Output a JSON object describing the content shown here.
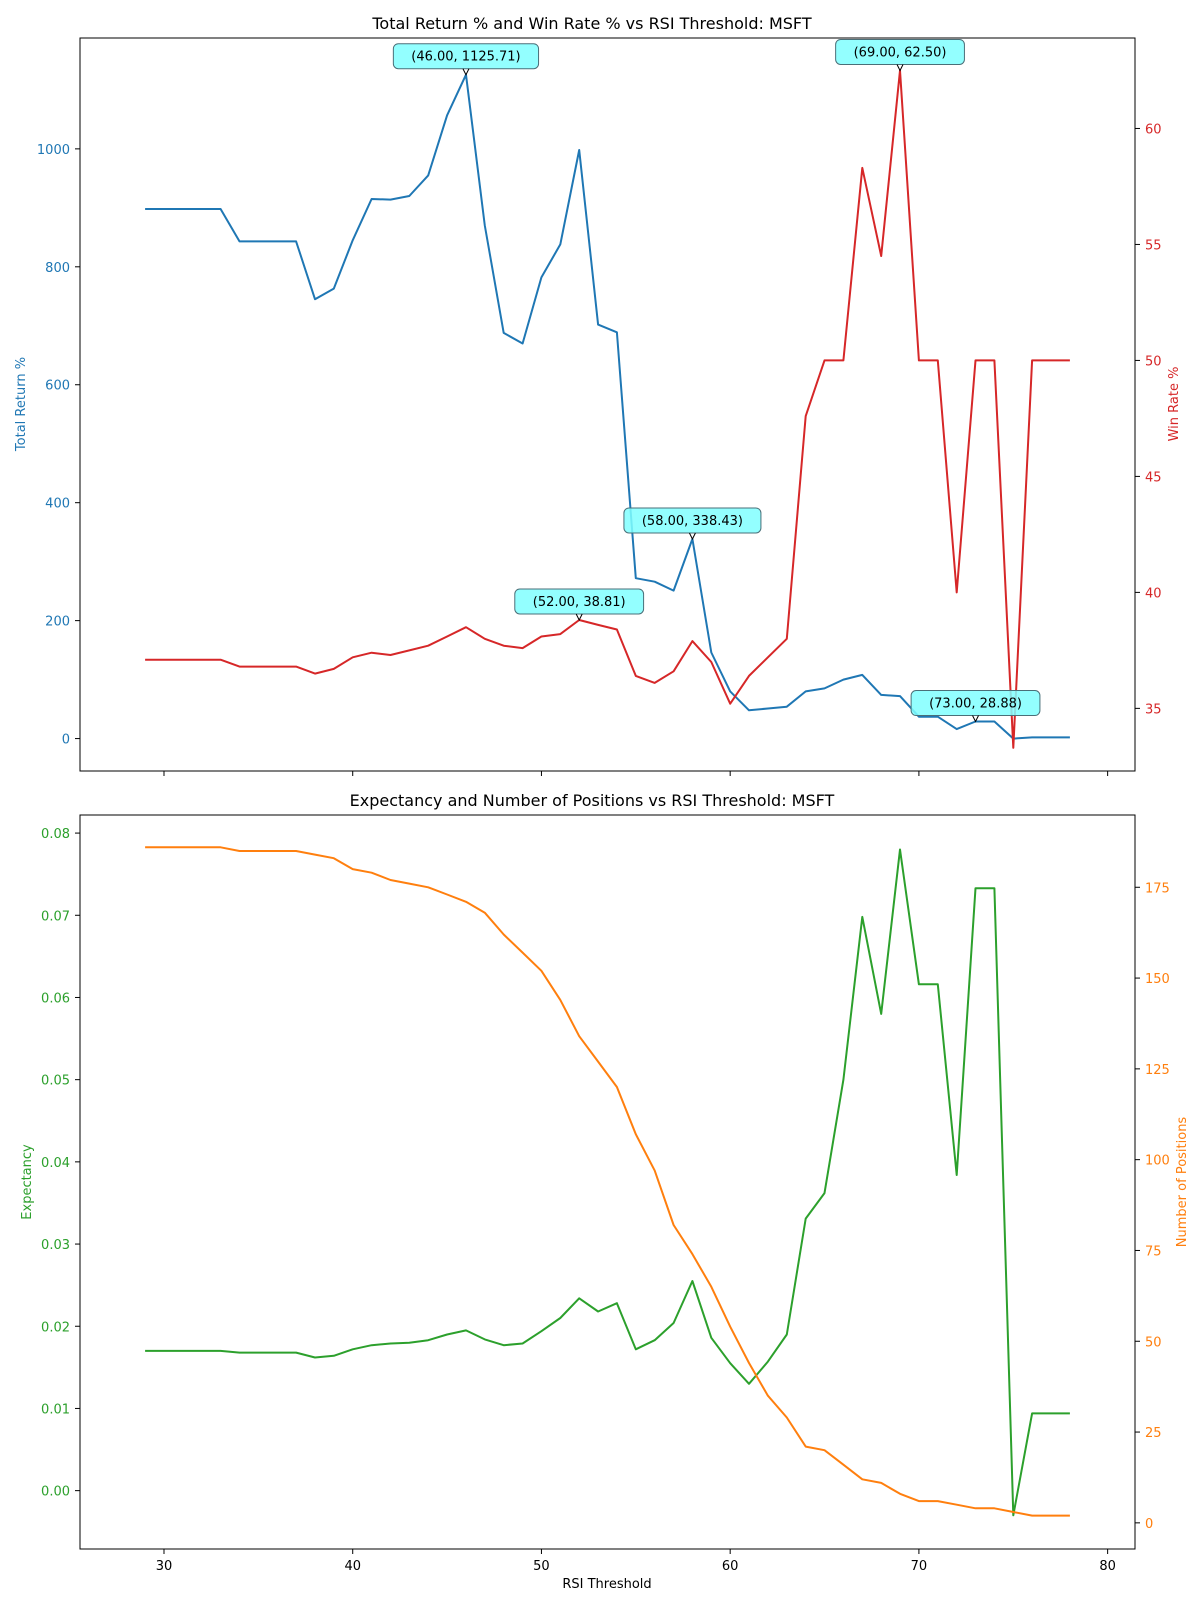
{
  "chart_data": [
    {
      "type": "line",
      "title": "Total Return % and Win Rate % vs RSI Threshold: MSFT",
      "x": [
        29,
        30,
        31,
        32,
        33,
        34,
        35,
        36,
        37,
        38,
        39,
        40,
        41,
        42,
        43,
        44,
        45,
        46,
        47,
        48,
        49,
        50,
        51,
        52,
        53,
        54,
        55,
        56,
        57,
        58,
        59,
        60,
        61,
        62,
        63,
        64,
        65,
        66,
        67,
        68,
        69,
        70,
        71,
        72,
        73,
        74,
        75,
        76,
        77,
        78
      ],
      "xlim": [
        25.55,
        81.45
      ],
      "xticks": [
        30,
        40,
        50,
        60,
        70,
        80
      ],
      "series": [
        {
          "name": "Total Return %",
          "axis": "left",
          "color": "#1f77b4",
          "values": [
            898,
            898,
            898,
            898,
            898,
            843,
            843,
            843,
            843,
            745,
            763,
            845,
            915,
            914,
            920,
            955,
            1057,
            1125.71,
            870,
            688,
            670,
            782,
            838,
            998,
            702,
            689,
            272,
            266,
            251,
            338.43,
            146,
            80,
            48,
            51,
            54,
            80,
            85,
            100,
            108,
            74,
            72,
            37,
            37,
            16,
            28.88,
            28.88,
            0,
            2,
            2,
            2
          ]
        },
        {
          "name": "Win Rate %",
          "axis": "right",
          "color": "#d62728",
          "values": [
            37.1,
            37.1,
            37.1,
            37.1,
            37.1,
            36.8,
            36.8,
            36.8,
            36.8,
            36.5,
            36.7,
            37.2,
            37.4,
            37.3,
            37.5,
            37.7,
            38.1,
            38.5,
            38.0,
            37.7,
            37.6,
            38.1,
            38.2,
            38.81,
            38.6,
            38.4,
            36.4,
            36.1,
            36.6,
            37.9,
            37.0,
            35.2,
            36.4,
            37.2,
            38.0,
            47.6,
            50,
            50,
            58.3,
            54.5,
            62.5,
            50,
            50,
            40,
            50,
            50,
            33.3,
            50,
            50,
            50
          ]
        }
      ],
      "ylim_left": [
        -55,
        1188
      ],
      "yticks_left": [
        0,
        200,
        400,
        600,
        800,
        1000
      ],
      "ylabel_left": "Total Return %",
      "ylim_right": [
        32.3,
        63.9
      ],
      "yticks_right": [
        35,
        40,
        45,
        50,
        55,
        60
      ],
      "ylabel_right": "Win Rate %",
      "annotations": [
        {
          "x": 46,
          "y": 1125.71,
          "axis": "left",
          "text": "(46.00, 1125.71)"
        },
        {
          "x": 69,
          "y": 62.5,
          "axis": "right",
          "text": "(69.00, 62.50)"
        },
        {
          "x": 58,
          "y": 338.43,
          "axis": "left",
          "text": "(58.00, 338.43)"
        },
        {
          "x": 52,
          "y": 38.81,
          "axis": "right",
          "text": "(52.00, 38.81)"
        },
        {
          "x": 73,
          "y": 28.88,
          "axis": "left",
          "text": "(73.00, 28.88)"
        }
      ],
      "annotation_color": "#80ffff",
      "grid": false
    },
    {
      "type": "line",
      "title": "Expectancy and Number of Positions vs RSI Threshold: MSFT",
      "xlabel": "RSI Threshold",
      "x": [
        29,
        30,
        31,
        32,
        33,
        34,
        35,
        36,
        37,
        38,
        39,
        40,
        41,
        42,
        43,
        44,
        45,
        46,
        47,
        48,
        49,
        50,
        51,
        52,
        53,
        54,
        55,
        56,
        57,
        58,
        59,
        60,
        61,
        62,
        63,
        64,
        65,
        66,
        67,
        68,
        69,
        70,
        71,
        72,
        73,
        74,
        75,
        76,
        77,
        78
      ],
      "xlim": [
        25.55,
        81.45
      ],
      "xticks": [
        30,
        40,
        50,
        60,
        70,
        80
      ],
      "series": [
        {
          "name": "Expectancy",
          "axis": "left",
          "color": "#2ca02c",
          "values": [
            0.017,
            0.017,
            0.017,
            0.017,
            0.017,
            0.0168,
            0.0168,
            0.0168,
            0.0168,
            0.0162,
            0.0164,
            0.0172,
            0.0177,
            0.0179,
            0.018,
            0.0183,
            0.019,
            0.0195,
            0.0184,
            0.0177,
            0.0179,
            0.0194,
            0.021,
            0.0234,
            0.0218,
            0.0228,
            0.0172,
            0.0183,
            0.0204,
            0.0255,
            0.0186,
            0.0155,
            0.013,
            0.0157,
            0.019,
            0.0331,
            0.0362,
            0.05,
            0.0698,
            0.058,
            0.078,
            0.0616,
            0.0616,
            0.0384,
            0.0733,
            0.0733,
            -0.003,
            0.0094,
            0.0094,
            0.0094
          ]
        },
        {
          "name": "Number of Positions",
          "axis": "right",
          "color": "#ff7f0e",
          "values": [
            186,
            186,
            186,
            186,
            186,
            185,
            185,
            185,
            185,
            184,
            183,
            180,
            179,
            177,
            176,
            175,
            173,
            171,
            168,
            162,
            157,
            152,
            144,
            134,
            127,
            120,
            107,
            97,
            82,
            74,
            65,
            54,
            44,
            35,
            29,
            21,
            20,
            16,
            12,
            11,
            8,
            6,
            6,
            5,
            4,
            4,
            3,
            2,
            2,
            2
          ]
        }
      ],
      "ylim_left": [
        -0.0071,
        0.0822
      ],
      "yticks_left": [
        0.0,
        0.01,
        0.02,
        0.03,
        0.04,
        0.05,
        0.06,
        0.07,
        0.08
      ],
      "ylabel_left": "Expectancy",
      "ylim_right": [
        -7.2,
        194.9
      ],
      "yticks_right": [
        0,
        25,
        50,
        75,
        100,
        125,
        150,
        175
      ],
      "ylabel_right": "Number of Positions",
      "grid": false
    }
  ]
}
